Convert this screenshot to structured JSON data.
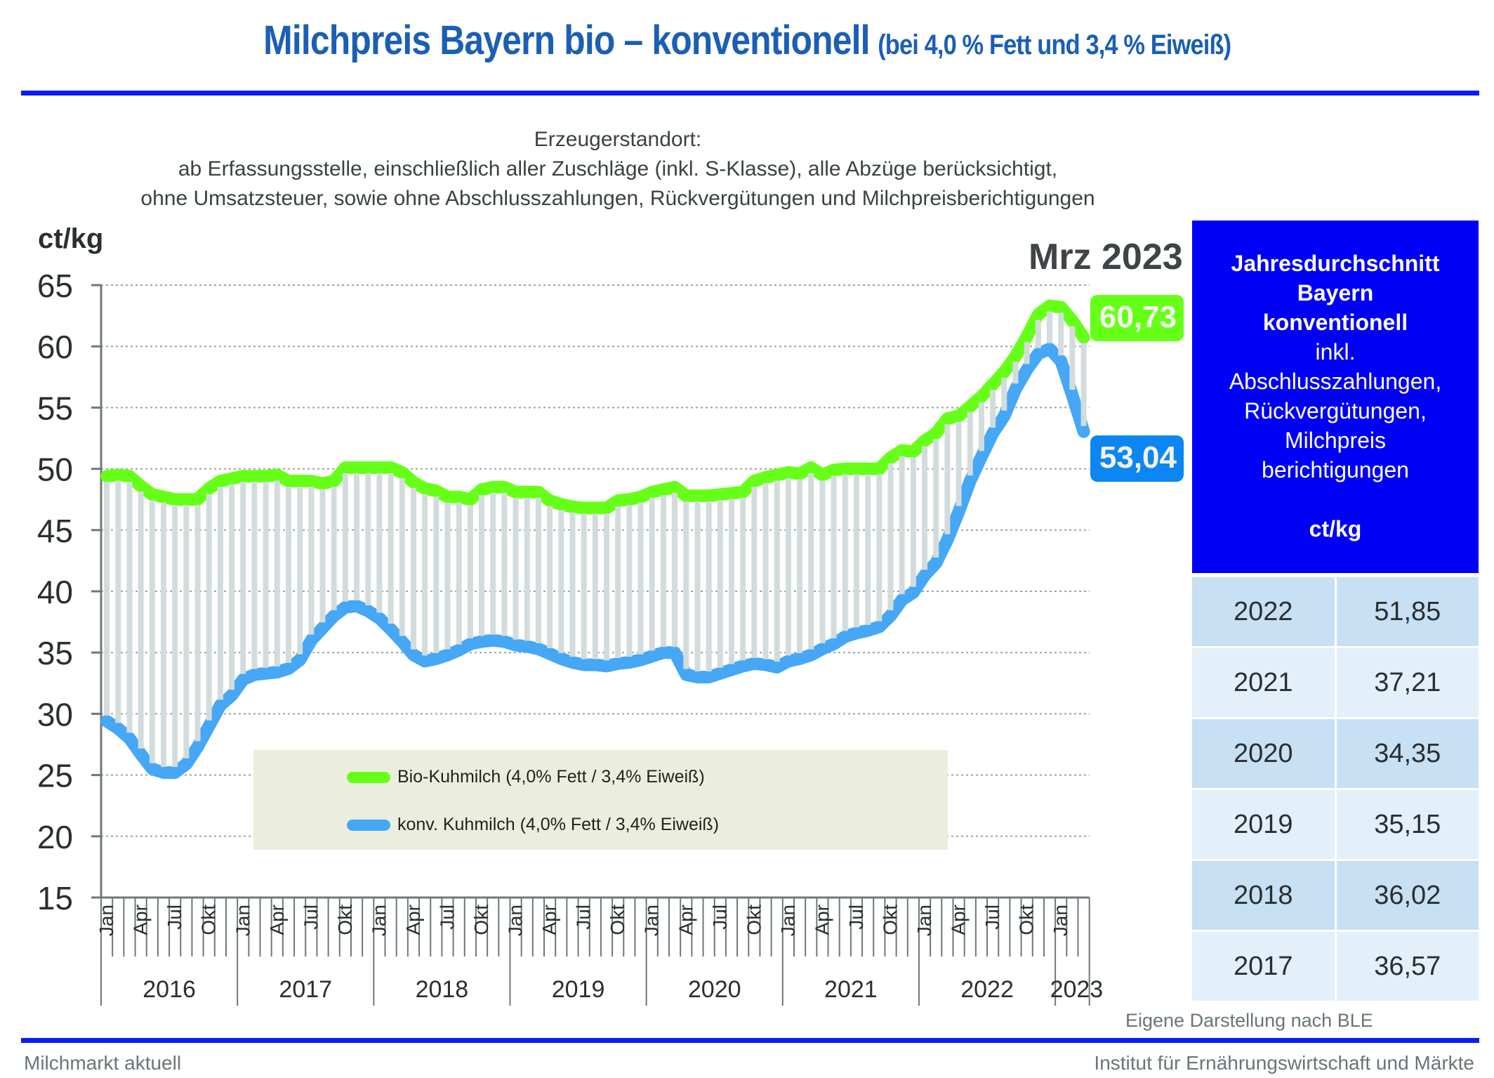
{
  "header": {
    "title": "Milchpreis Bayern bio – konventionell",
    "title_suffix": "(bei 4,0 % Fett und 3,4 % Eiweiß)"
  },
  "subtitle": {
    "line1": "Erzeugerstandort:",
    "line2": "ab Erfassungsstelle, einschließlich aller Zuschläge (inkl. S-Klasse), alle Abzüge berücksichtigt,",
    "line3": "ohne Umsatzsteuer, sowie ohne Abschlusszahlungen, Rückvergütungen und Milchpreisberichtigungen"
  },
  "period_label": "Mrz 2023",
  "latest": {
    "bio": "60,73",
    "konv": "53,04"
  },
  "colors": {
    "title": "#1b5fb5",
    "rule": "#0a1cf5",
    "bio": "#66ff18",
    "konv": "#45a7f5",
    "konv_badge": "#0c86f2",
    "gap_bars": "#d3dcdc",
    "legend_bg": "#ebeedd",
    "infobox": "#0000f5"
  },
  "legend": {
    "bio": "Bio-Kuhmilch (4,0% Fett / 3,4% Eiweiß)",
    "konv": "konv. Kuhmilch (4,0% Fett / 3,4% Eiweiß)"
  },
  "infobox": {
    "line1": "Jahresdurchschnitt",
    "line2": "Bayern",
    "line3": "konventionell",
    "line4": "inkl.",
    "line5": "Abschlusszahlungen,",
    "line6": "Rückvergütungen,",
    "line7": "Milchpreis",
    "line8": "berichtigungen",
    "unit": "ct/kg"
  },
  "annual_table": [
    {
      "year": "2022",
      "value": "51,85"
    },
    {
      "year": "2021",
      "value": "37,21"
    },
    {
      "year": "2020",
      "value": "34,35"
    },
    {
      "year": "2019",
      "value": "35,15"
    },
    {
      "year": "2018",
      "value": "36,02"
    },
    {
      "year": "2017",
      "value": "36,57"
    }
  ],
  "source": "Eigene Darstellung nach BLE",
  "footer": {
    "left": "Milchmarkt aktuell",
    "right": "Institut für Ernährungswirtschaft und Märkte"
  },
  "chart_data": {
    "type": "line",
    "title": "Milchpreis Bayern bio – konventionell (bei 4,0 % Fett und 3,4 % Eiweiß)",
    "ylabel": "ct/kg",
    "xlabel": "",
    "ylim": [
      15,
      65
    ],
    "yticks": [
      15,
      20,
      25,
      30,
      35,
      40,
      45,
      50,
      55,
      60,
      65
    ],
    "grid": true,
    "legend_position": "bottom-center",
    "x_start": "Jan 2016",
    "x_end": "Mrz 2023",
    "month_tick_labels": [
      "Jan",
      "Apr",
      "Jul",
      "Okt"
    ],
    "years": [
      "2016",
      "2017",
      "2018",
      "2019",
      "2020",
      "2021",
      "2022",
      "2023"
    ],
    "series": [
      {
        "name": "Bio-Kuhmilch (4,0% Fett / 3,4% Eiweiß)",
        "key": "bio",
        "values": [
          49.4,
          49.5,
          49.4,
          48.6,
          47.9,
          47.7,
          47.5,
          47.5,
          47.5,
          48.4,
          49.0,
          49.2,
          49.4,
          49.4,
          49.4,
          49.5,
          49.0,
          49.0,
          49.0,
          48.8,
          49.0,
          50.1,
          50.1,
          50.1,
          50.1,
          50.1,
          49.7,
          48.9,
          48.4,
          48.2,
          47.7,
          47.7,
          47.5,
          48.3,
          48.5,
          48.5,
          48.1,
          48.1,
          48.1,
          47.4,
          47.1,
          46.9,
          46.8,
          46.8,
          46.8,
          47.4,
          47.5,
          47.7,
          48.1,
          48.3,
          48.5,
          47.8,
          47.8,
          47.8,
          47.9,
          48.0,
          48.1,
          49.0,
          49.3,
          49.5,
          49.7,
          49.6,
          50.1,
          49.5,
          49.9,
          50.0,
          50.0,
          50.0,
          50.0,
          50.9,
          51.5,
          51.4,
          52.3,
          52.9,
          54.1,
          54.3,
          55.1,
          55.9,
          56.9,
          57.9,
          59.2,
          60.8,
          62.6,
          63.3,
          63.2,
          62.1,
          60.73
        ]
      },
      {
        "name": "konv. Kuhmilch (4,0% Fett / 3,4% Eiweiß)",
        "key": "konv",
        "values": [
          29.4,
          28.8,
          28.0,
          26.7,
          25.5,
          25.2,
          25.2,
          25.9,
          27.3,
          29.0,
          30.7,
          31.5,
          32.8,
          33.2,
          33.3,
          33.4,
          33.7,
          34.4,
          36.0,
          37.0,
          38.0,
          38.7,
          38.8,
          38.4,
          37.8,
          36.9,
          35.9,
          34.8,
          34.3,
          34.5,
          34.8,
          35.2,
          35.7,
          35.9,
          36.0,
          35.9,
          35.6,
          35.5,
          35.3,
          34.9,
          34.5,
          34.2,
          34.0,
          34.0,
          33.9,
          34.1,
          34.2,
          34.4,
          34.7,
          35.0,
          35.0,
          33.2,
          33.0,
          33.0,
          33.3,
          33.6,
          33.9,
          34.1,
          34.0,
          33.8,
          34.3,
          34.5,
          34.8,
          35.3,
          35.7,
          36.3,
          36.6,
          36.8,
          37.1,
          38.0,
          39.3,
          39.9,
          41.3,
          42.3,
          44.2,
          46.5,
          49.0,
          51.0,
          52.9,
          54.3,
          56.5,
          58.1,
          59.4,
          59.8,
          58.8,
          56.0,
          53.04
        ]
      }
    ]
  }
}
